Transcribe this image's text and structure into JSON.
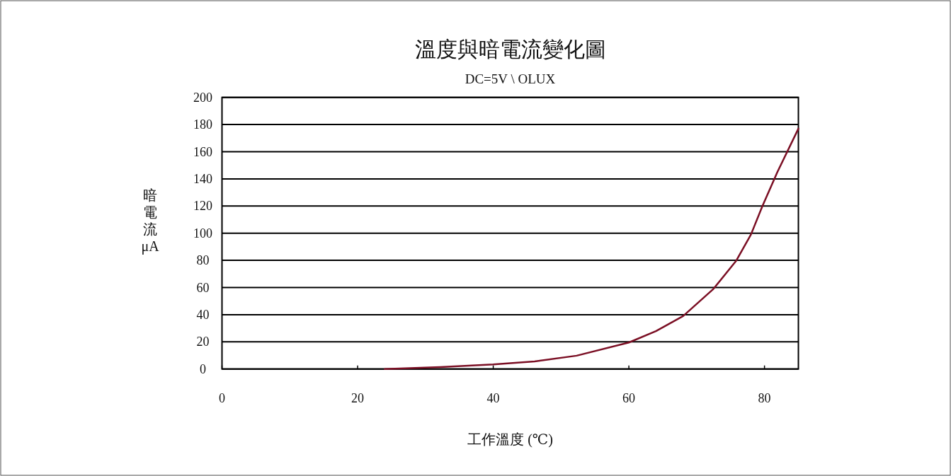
{
  "chart_data": {
    "type": "line",
    "title": "溫度與暗電流變化圖",
    "subtitle": "DC=5V \\ OLUX",
    "xlabel": "工作溫度 (℃)",
    "ylabel": "暗電流 μA",
    "xlim": [
      0,
      85
    ],
    "xticks": [
      0,
      20,
      40,
      60,
      80
    ],
    "ylim": [
      0,
      200
    ],
    "yticks": [
      0,
      20,
      40,
      60,
      80,
      100,
      120,
      140,
      160,
      180,
      200
    ],
    "grid": "y",
    "marker": "none",
    "line_style": "solid",
    "series": [
      {
        "color": "#7b0f24",
        "x": [
          24,
          32.2,
          40,
          46.1,
          52.3,
          60,
          64,
          68,
          72.4,
          75.8,
          78,
          79.7,
          81.9,
          85
        ],
        "values": [
          0,
          1.4,
          3.3,
          5.6,
          9.8,
          19.5,
          27.9,
          39,
          58.6,
          79.5,
          99,
          120,
          145,
          177
        ]
      }
    ]
  }
}
